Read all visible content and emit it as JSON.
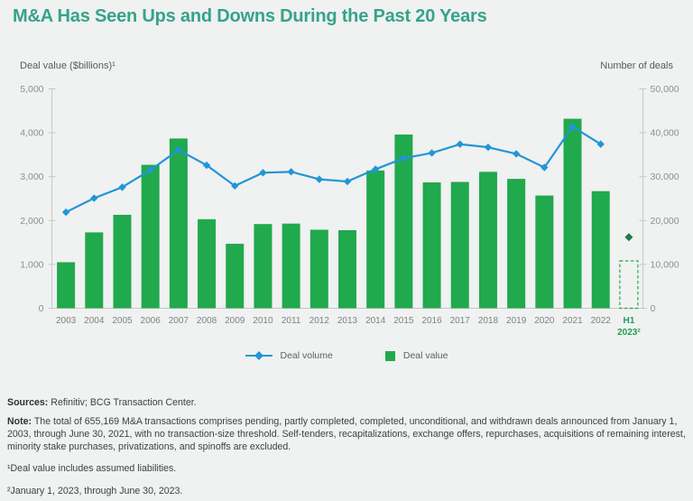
{
  "title": "M&A Has Seen Ups and Downs During the Past 20 Years",
  "axes": {
    "left_title": "Deal value ($billions)¹",
    "right_title": "Number of deals"
  },
  "legend": [
    {
      "label": "Deal volume",
      "marker": "line-diamond",
      "color": "#2196d6"
    },
    {
      "label": "Deal value",
      "marker": "square",
      "color": "#21a94e"
    }
  ],
  "chart_data": {
    "type": "bar+line",
    "title": "M&A Has Seen Ups and Downs During the Past 20 Years",
    "categories": [
      "2003",
      "2004",
      "2005",
      "2006",
      "2007",
      "2008",
      "2009",
      "2010",
      "2011",
      "2012",
      "2013",
      "2014",
      "2015",
      "2016",
      "2017",
      "2018",
      "2019",
      "2020",
      "2021",
      "2022",
      "H1 2023²"
    ],
    "series": [
      {
        "name": "Deal value",
        "type": "bar",
        "axis": "left",
        "color": "#21a94e",
        "values": [
          1050,
          1730,
          2130,
          3270,
          3870,
          2030,
          1470,
          1920,
          1930,
          1790,
          1780,
          3140,
          3960,
          2870,
          2880,
          3110,
          2950,
          2570,
          4320,
          2670,
          1080
        ]
      },
      {
        "name": "Deal volume",
        "type": "line",
        "axis": "right",
        "color": "#2196d6",
        "values": [
          21900,
          25100,
          27600,
          31500,
          36100,
          32600,
          27900,
          30900,
          31100,
          29400,
          28900,
          31700,
          34200,
          35400,
          37400,
          36700,
          35200,
          32100,
          41400,
          37400,
          16200
        ]
      }
    ],
    "left_axis": {
      "label": "Deal value ($billions)¹",
      "min": 0,
      "max": 5000,
      "step": 1000
    },
    "right_axis": {
      "label": "Number of deals",
      "min": 0,
      "max": 50000,
      "step": 10000
    },
    "last_category_special": {
      "bar_style": "dashed-outline",
      "line_style": "isolated-diamond",
      "marker_color": "#1a7d4b",
      "label_color": "#1f9e55"
    },
    "grid": false,
    "legend_position": "bottom"
  },
  "footer": {
    "sources_label": "Sources:",
    "sources_text": " Refinitiv; BCG Transaction Center.",
    "note_label": "Note:",
    "note_text": " The total of 655,169 M&A transactions comprises pending, partly completed, completed, unconditional, and withdrawn deals announced from January 1, 2003, through June 30, 2021, with no transaction-size threshold. Self-tenders, recapitalizations, exchange offers, repurchases, acquisitions of remaining interest, minority stake purchases, privatizations, and spinoffs are excluded.",
    "footnote1": "¹Deal value includes assumed liabilities.",
    "footnote2": "²January 1, 2023, through June 30, 2023."
  },
  "colors": {
    "background": "#f0f1f1",
    "title": "#35a389",
    "bar_green": "#21a94e",
    "line_blue": "#2196d6",
    "h1_marker_green": "#1a7d4b",
    "h1_label_green": "#1f9e55",
    "axis_gray": "#c6c9c9",
    "tick_label_gray": "#8d9191",
    "year_label_gray": "#7e8383",
    "footer_text": "#3d4242"
  }
}
